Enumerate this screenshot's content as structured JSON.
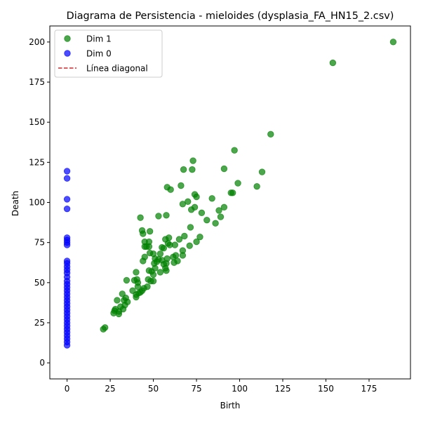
{
  "chart_data": {
    "type": "scatter",
    "title": "Diagrama de Persistencia - mieloides (dysplasia_FA_HN15_2.csv)",
    "xlabel": "Birth",
    "ylabel": "Death",
    "xlim": [
      -10,
      199
    ],
    "ylim": [
      -10,
      210
    ],
    "xticks": [
      0,
      25,
      50,
      75,
      100,
      125,
      150,
      175
    ],
    "yticks": [
      0,
      25,
      50,
      75,
      100,
      125,
      150,
      175,
      200
    ],
    "grid": false,
    "legend_position": "top-left",
    "legend": [
      {
        "label": "Dim 1",
        "kind": "marker",
        "color": "#008000"
      },
      {
        "label": "Dim 0",
        "kind": "marker",
        "color": "#0000ff"
      },
      {
        "label": "Línea diagonal",
        "kind": "dashed-line",
        "color": "#d62728"
      }
    ],
    "series": [
      {
        "name": "Dim 0",
        "color": "#0000ff",
        "points": [
          [
            0,
            119.5
          ],
          [
            0,
            115
          ],
          [
            0,
            102
          ],
          [
            0,
            96
          ],
          [
            0,
            78
          ],
          [
            0,
            76.5
          ],
          [
            0,
            75
          ],
          [
            0,
            73.5
          ],
          [
            0,
            63.5
          ],
          [
            0,
            62
          ],
          [
            0,
            60
          ],
          [
            0,
            58
          ],
          [
            0,
            56
          ],
          [
            0,
            53.5
          ],
          [
            0,
            51
          ],
          [
            0,
            49
          ],
          [
            0,
            47
          ],
          [
            0,
            45
          ],
          [
            0,
            43
          ],
          [
            0,
            41
          ],
          [
            0,
            39
          ],
          [
            0,
            37
          ],
          [
            0,
            35
          ],
          [
            0,
            33
          ],
          [
            0,
            31
          ],
          [
            0,
            29
          ],
          [
            0,
            27
          ],
          [
            0,
            25
          ],
          [
            0,
            23
          ],
          [
            0,
            21
          ],
          [
            0,
            19
          ],
          [
            0,
            17
          ],
          [
            0,
            15
          ],
          [
            0,
            13
          ],
          [
            0,
            11
          ]
        ]
      },
      {
        "name": "Dim 1",
        "color": "#008000",
        "points": [
          [
            189,
            200
          ],
          [
            154,
            187
          ],
          [
            118,
            142.5
          ],
          [
            113,
            119
          ],
          [
            110,
            110
          ],
          [
            99,
            112
          ],
          [
            97,
            132.5
          ],
          [
            96,
            106
          ],
          [
            95,
            106
          ],
          [
            91,
            121
          ],
          [
            91,
            97
          ],
          [
            89,
            91
          ],
          [
            88,
            95
          ],
          [
            86,
            87
          ],
          [
            84,
            102.5
          ],
          [
            81,
            89
          ],
          [
            78,
            93.5
          ],
          [
            77,
            78.5
          ],
          [
            75,
            103.5
          ],
          [
            75,
            75.5
          ],
          [
            74,
            105
          ],
          [
            74,
            97
          ],
          [
            73,
            126
          ],
          [
            72.5,
            120.5
          ],
          [
            72,
            95.5
          ],
          [
            71.5,
            84.5
          ],
          [
            71,
            73
          ],
          [
            70,
            100.5
          ],
          [
            68,
            79
          ],
          [
            67.5,
            120.5
          ],
          [
            67,
            99
          ],
          [
            67,
            70
          ],
          [
            67,
            67
          ],
          [
            66,
            110.5
          ],
          [
            65,
            77
          ],
          [
            64,
            63.5
          ],
          [
            63,
            67
          ],
          [
            62.5,
            73.5
          ],
          [
            62,
            62.5
          ],
          [
            61.5,
            66
          ],
          [
            60,
            108
          ],
          [
            59.5,
            73.5
          ],
          [
            59,
            78
          ],
          [
            58.5,
            74.5
          ],
          [
            58,
            109.5
          ],
          [
            58,
            65
          ],
          [
            57.5,
            92
          ],
          [
            57.5,
            62
          ],
          [
            57.5,
            57.5
          ],
          [
            57,
            59
          ],
          [
            57,
            77
          ],
          [
            56,
            71.5
          ],
          [
            56,
            61.5
          ],
          [
            55,
            72
          ],
          [
            55,
            64
          ],
          [
            54,
            56.5
          ],
          [
            54,
            68
          ],
          [
            53,
            91.5
          ],
          [
            53,
            64.5
          ],
          [
            52,
            63
          ],
          [
            51,
            65
          ],
          [
            51,
            59
          ],
          [
            50.5,
            62
          ],
          [
            50,
            68
          ],
          [
            50,
            55
          ],
          [
            50,
            51
          ],
          [
            49,
            57
          ],
          [
            48.5,
            51
          ],
          [
            48,
            82
          ],
          [
            48,
            68.5
          ],
          [
            47.5,
            75.5
          ],
          [
            47.5,
            72.5
          ],
          [
            47.5,
            57.5
          ],
          [
            47,
            52
          ],
          [
            46.5,
            47.5
          ],
          [
            46,
            72.5
          ],
          [
            45,
            75.5
          ],
          [
            45,
            72.5
          ],
          [
            45,
            66
          ],
          [
            44.5,
            46.5
          ],
          [
            44,
            80.5
          ],
          [
            44,
            63.5
          ],
          [
            43.5,
            82.5
          ],
          [
            43.5,
            45
          ],
          [
            42.5,
            90.5
          ],
          [
            42.5,
            44
          ],
          [
            41.5,
            43.5
          ],
          [
            41,
            50
          ],
          [
            41,
            47.5
          ],
          [
            40.5,
            52
          ],
          [
            40,
            42.5
          ],
          [
            40,
            41
          ],
          [
            40,
            56.5
          ],
          [
            39,
            51.5
          ],
          [
            38,
            45
          ],
          [
            34.5,
            51.5
          ],
          [
            35,
            38
          ],
          [
            34,
            40.5
          ],
          [
            33.5,
            36
          ],
          [
            33,
            39
          ],
          [
            32.5,
            33.5
          ],
          [
            32,
            43
          ],
          [
            31,
            35
          ],
          [
            30,
            32
          ],
          [
            30,
            30.5
          ],
          [
            29,
            39
          ],
          [
            28,
            33.5
          ],
          [
            27.5,
            32.5
          ],
          [
            27,
            31
          ],
          [
            22,
            22
          ],
          [
            21,
            21
          ]
        ]
      }
    ],
    "diagonal_line": {
      "label": "Línea diagonal",
      "color": "#d62728",
      "style": "dashed"
    }
  }
}
